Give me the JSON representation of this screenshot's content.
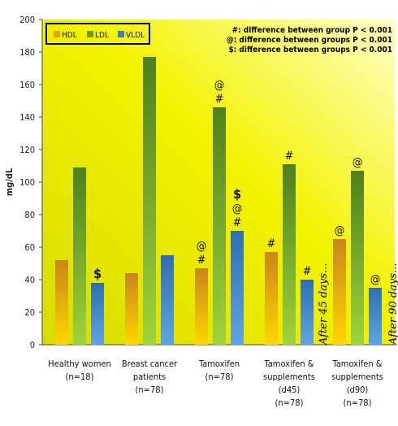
{
  "chart_data": {
    "type": "bar",
    "ylabel": "mg/dL",
    "ylim": [
      0,
      200
    ],
    "yticks": [
      0,
      20,
      40,
      60,
      80,
      100,
      120,
      140,
      160,
      180,
      200
    ],
    "categories": [
      [
        "Healthy  women",
        "(n=18)"
      ],
      [
        "Breast  cancer",
        "patients",
        "(n=78)"
      ],
      [
        "Tamoxifen",
        "(n=78)"
      ],
      [
        "Tamoxifen &",
        "supplements",
        "(d45)",
        "(n=78)"
      ],
      [
        "Tamoxifen &",
        "supplements",
        "(d90)",
        "(n=78)"
      ]
    ],
    "series": [
      {
        "name": "HDL",
        "color": "#e8a21a",
        "values": [
          52,
          44,
          47,
          57,
          65
        ]
      },
      {
        "name": "LDL",
        "color": "#6a9a2a",
        "values": [
          109,
          177,
          146,
          111,
          107
        ]
      },
      {
        "name": "VLDL",
        "color": "#3f7fc4",
        "values": [
          38,
          55,
          70,
          40,
          35
        ]
      }
    ],
    "annotations": [
      {
        "category": 0,
        "series": 2,
        "labels": [
          "$"
        ]
      },
      {
        "category": 2,
        "series": 0,
        "labels": [
          "@",
          "#"
        ]
      },
      {
        "category": 2,
        "series": 1,
        "labels": [
          "@",
          "#"
        ]
      },
      {
        "category": 2,
        "series": 2,
        "labels": [
          "$",
          "@",
          "#"
        ]
      },
      {
        "category": 3,
        "series": 0,
        "labels": [
          "#"
        ]
      },
      {
        "category": 3,
        "series": 1,
        "labels": [
          "#"
        ]
      },
      {
        "category": 3,
        "series": 2,
        "labels": [
          "#"
        ]
      },
      {
        "category": 4,
        "series": 0,
        "labels": [
          "@"
        ]
      },
      {
        "category": 4,
        "series": 1,
        "labels": [
          "@"
        ]
      },
      {
        "category": 4,
        "series": 2,
        "labels": [
          "@"
        ]
      }
    ],
    "notes": [
      "#: difference between group P < 0.001",
      "@: difference between groups P < 0.001",
      "$: difference between groups P < 0.001"
    ],
    "side_labels": [
      "After 45 days...",
      "After 90 days..."
    ],
    "legend_position": "top-left",
    "grid": false
  }
}
